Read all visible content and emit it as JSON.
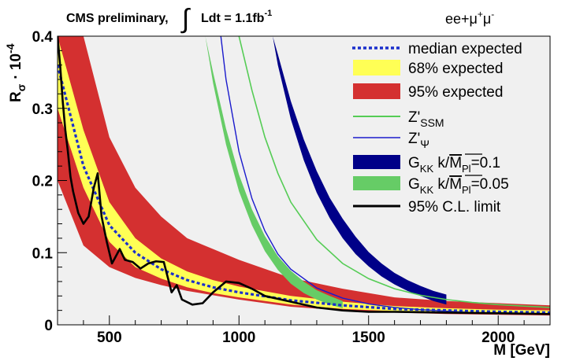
{
  "chart_data": {
    "type": "line",
    "title": "CMS preliminary, ∫ Ldt = 1.1fb⁻¹",
    "title_parts": {
      "prefix": "CMS preliminary,",
      "integral": "∫",
      "lumi": "Ldt = 1.1fb",
      "lumi_sup": "-1"
    },
    "channel": {
      "base": "ee+μ",
      "sup1": "+",
      "mid": "μ",
      "sup2": "-"
    },
    "xlabel": "M [GeV]",
    "ylabel": {
      "main": "R",
      "sub": "σ",
      "mult": "· 10",
      "sup": "-4"
    },
    "xlim": [
      300,
      2200
    ],
    "ylim": [
      0,
      0.4
    ],
    "x_ticks": [
      500,
      1000,
      1500,
      2000
    ],
    "x_tick_labels": [
      "500",
      "1000",
      "1500",
      "2000"
    ],
    "y_ticks": [
      0,
      0.1,
      0.2,
      0.3,
      0.4
    ],
    "y_tick_labels": [
      "0",
      "0.1",
      "0.2",
      "0.3",
      "0.4"
    ],
    "background_color": "#f0f0f0",
    "legend": [
      {
        "key": "median",
        "label": "median expected",
        "style": "dashed",
        "color": "#1a2fcc"
      },
      {
        "key": "band68",
        "label": "68% expected",
        "style": "fill",
        "color": "#ffff55"
      },
      {
        "key": "band95",
        "label": "95% expected",
        "style": "fill",
        "color": "#d43030"
      },
      {
        "key": "zssm",
        "label_main": "Z'",
        "label_sub": "SSM",
        "style": "line",
        "color": "#55cc55"
      },
      {
        "key": "zpsi",
        "label_main": "Z'",
        "label_sub": "Ψ",
        "style": "line",
        "color": "#1a1acc"
      },
      {
        "key": "gkk01",
        "label_main": "G",
        "label_sub": "KK",
        "label_k": " k/",
        "label_m": "M",
        "label_msub": "Pl",
        "label_val": "=0.1",
        "style": "fill",
        "color": "#000088"
      },
      {
        "key": "gkk005",
        "label_main": "G",
        "label_sub": "KK",
        "label_k": " k/",
        "label_m": "M",
        "label_msub": "Pl",
        "label_val": "=0.05",
        "style": "fill",
        "color": "#66cc66"
      },
      {
        "key": "observed",
        "label": "95% C.L. limit",
        "style": "line",
        "color": "#000000"
      }
    ],
    "series": [
      {
        "name": "95% expected",
        "x": [
          300,
          400,
          500,
          600,
          700,
          800,
          900,
          1000,
          1200,
          1400,
          1600,
          1800,
          2000,
          2200
        ],
        "upper": [
          0.4,
          0.4,
          0.26,
          0.19,
          0.15,
          0.12,
          0.105,
          0.09,
          0.065,
          0.05,
          0.038,
          0.033,
          0.03,
          0.027
        ],
        "lower": [
          0.2,
          0.11,
          0.08,
          0.065,
          0.055,
          0.047,
          0.041,
          0.035,
          0.025,
          0.02,
          0.017,
          0.015,
          0.014,
          0.013
        ]
      },
      {
        "name": "68% expected",
        "x": [
          300,
          400,
          500,
          600,
          700,
          800,
          900,
          1000,
          1200,
          1400,
          1600,
          1800,
          2000,
          2200
        ],
        "upper": [
          0.4,
          0.27,
          0.17,
          0.12,
          0.092,
          0.074,
          0.062,
          0.053,
          0.04,
          0.032,
          0.026,
          0.023,
          0.021,
          0.02
        ],
        "lower": [
          0.3,
          0.19,
          0.115,
          0.08,
          0.064,
          0.052,
          0.044,
          0.038,
          0.028,
          0.022,
          0.019,
          0.017,
          0.016,
          0.015
        ]
      },
      {
        "name": "median expected",
        "x": [
          300,
          400,
          500,
          600,
          700,
          800,
          900,
          1000,
          1200,
          1400,
          1600,
          1800,
          2000,
          2200
        ],
        "values": [
          0.36,
          0.22,
          0.138,
          0.1,
          0.077,
          0.062,
          0.052,
          0.045,
          0.034,
          0.027,
          0.022,
          0.02,
          0.018,
          0.017
        ]
      },
      {
        "name": "95% C.L. limit",
        "x": [
          300,
          310,
          320,
          330,
          340,
          350,
          360,
          380,
          400,
          420,
          440,
          455,
          470,
          490,
          510,
          525,
          540,
          560,
          590,
          620,
          650,
          680,
          710,
          740,
          760,
          780,
          820,
          860,
          900,
          950,
          1000,
          1050,
          1100,
          1200,
          1300,
          1400,
          1500,
          1600,
          1800,
          2000,
          2200
        ],
        "values": [
          0.4,
          0.36,
          0.31,
          0.27,
          0.24,
          0.205,
          0.185,
          0.155,
          0.14,
          0.15,
          0.19,
          0.21,
          0.15,
          0.115,
          0.085,
          0.095,
          0.105,
          0.09,
          0.087,
          0.078,
          0.085,
          0.088,
          0.087,
          0.045,
          0.055,
          0.035,
          0.028,
          0.03,
          0.045,
          0.06,
          0.058,
          0.05,
          0.04,
          0.032,
          0.024,
          0.02,
          0.018,
          0.018,
          0.017,
          0.016,
          0.015
        ]
      },
      {
        "name": "Z'SSM",
        "x": [
          1000,
          1050,
          1100,
          1150,
          1200,
          1300,
          1400,
          1500,
          1600,
          1700,
          1800,
          1900,
          2000,
          2100,
          2200
        ],
        "values": [
          0.4,
          0.325,
          0.26,
          0.21,
          0.17,
          0.118,
          0.085,
          0.064,
          0.05,
          0.041,
          0.035,
          0.031,
          0.028,
          0.026,
          0.024
        ]
      },
      {
        "name": "Z'Ψ",
        "x": [
          930,
          950,
          1000,
          1050,
          1100,
          1150,
          1200,
          1300,
          1400,
          1500,
          1600,
          1700,
          1800,
          1900,
          2000,
          2100,
          2200
        ],
        "values": [
          0.4,
          0.34,
          0.24,
          0.175,
          0.13,
          0.098,
          0.077,
          0.051,
          0.037,
          0.029,
          0.024,
          0.021,
          0.019,
          0.017,
          0.016,
          0.015,
          0.015
        ]
      },
      {
        "name": "GKK k/MPl=0.1",
        "x": [
          1130,
          1150,
          1200,
          1250,
          1300,
          1350,
          1400,
          1450,
          1500,
          1550,
          1600,
          1650,
          1700,
          1750,
          1800
        ],
        "upper": [
          0.4,
          0.375,
          0.31,
          0.257,
          0.213,
          0.176,
          0.147,
          0.122,
          0.101,
          0.085,
          0.072,
          0.062,
          0.054,
          0.047,
          0.042
        ],
        "lower": [
          0.4,
          0.36,
          0.285,
          0.228,
          0.183,
          0.148,
          0.12,
          0.098,
          0.081,
          0.067,
          0.056,
          0.047,
          0.04,
          0.033,
          0.028
        ]
      },
      {
        "name": "GKK k/MPl=0.05",
        "x": [
          870,
          900,
          950,
          1000,
          1050,
          1100,
          1150,
          1200,
          1250,
          1300,
          1350,
          1400
        ],
        "upper": [
          0.4,
          0.35,
          0.272,
          0.208,
          0.16,
          0.123,
          0.095,
          0.075,
          0.06,
          0.048,
          0.04,
          0.033
        ],
        "lower": [
          0.4,
          0.335,
          0.25,
          0.185,
          0.138,
          0.102,
          0.076,
          0.057,
          0.044,
          0.035,
          0.028,
          0.023
        ]
      }
    ]
  }
}
